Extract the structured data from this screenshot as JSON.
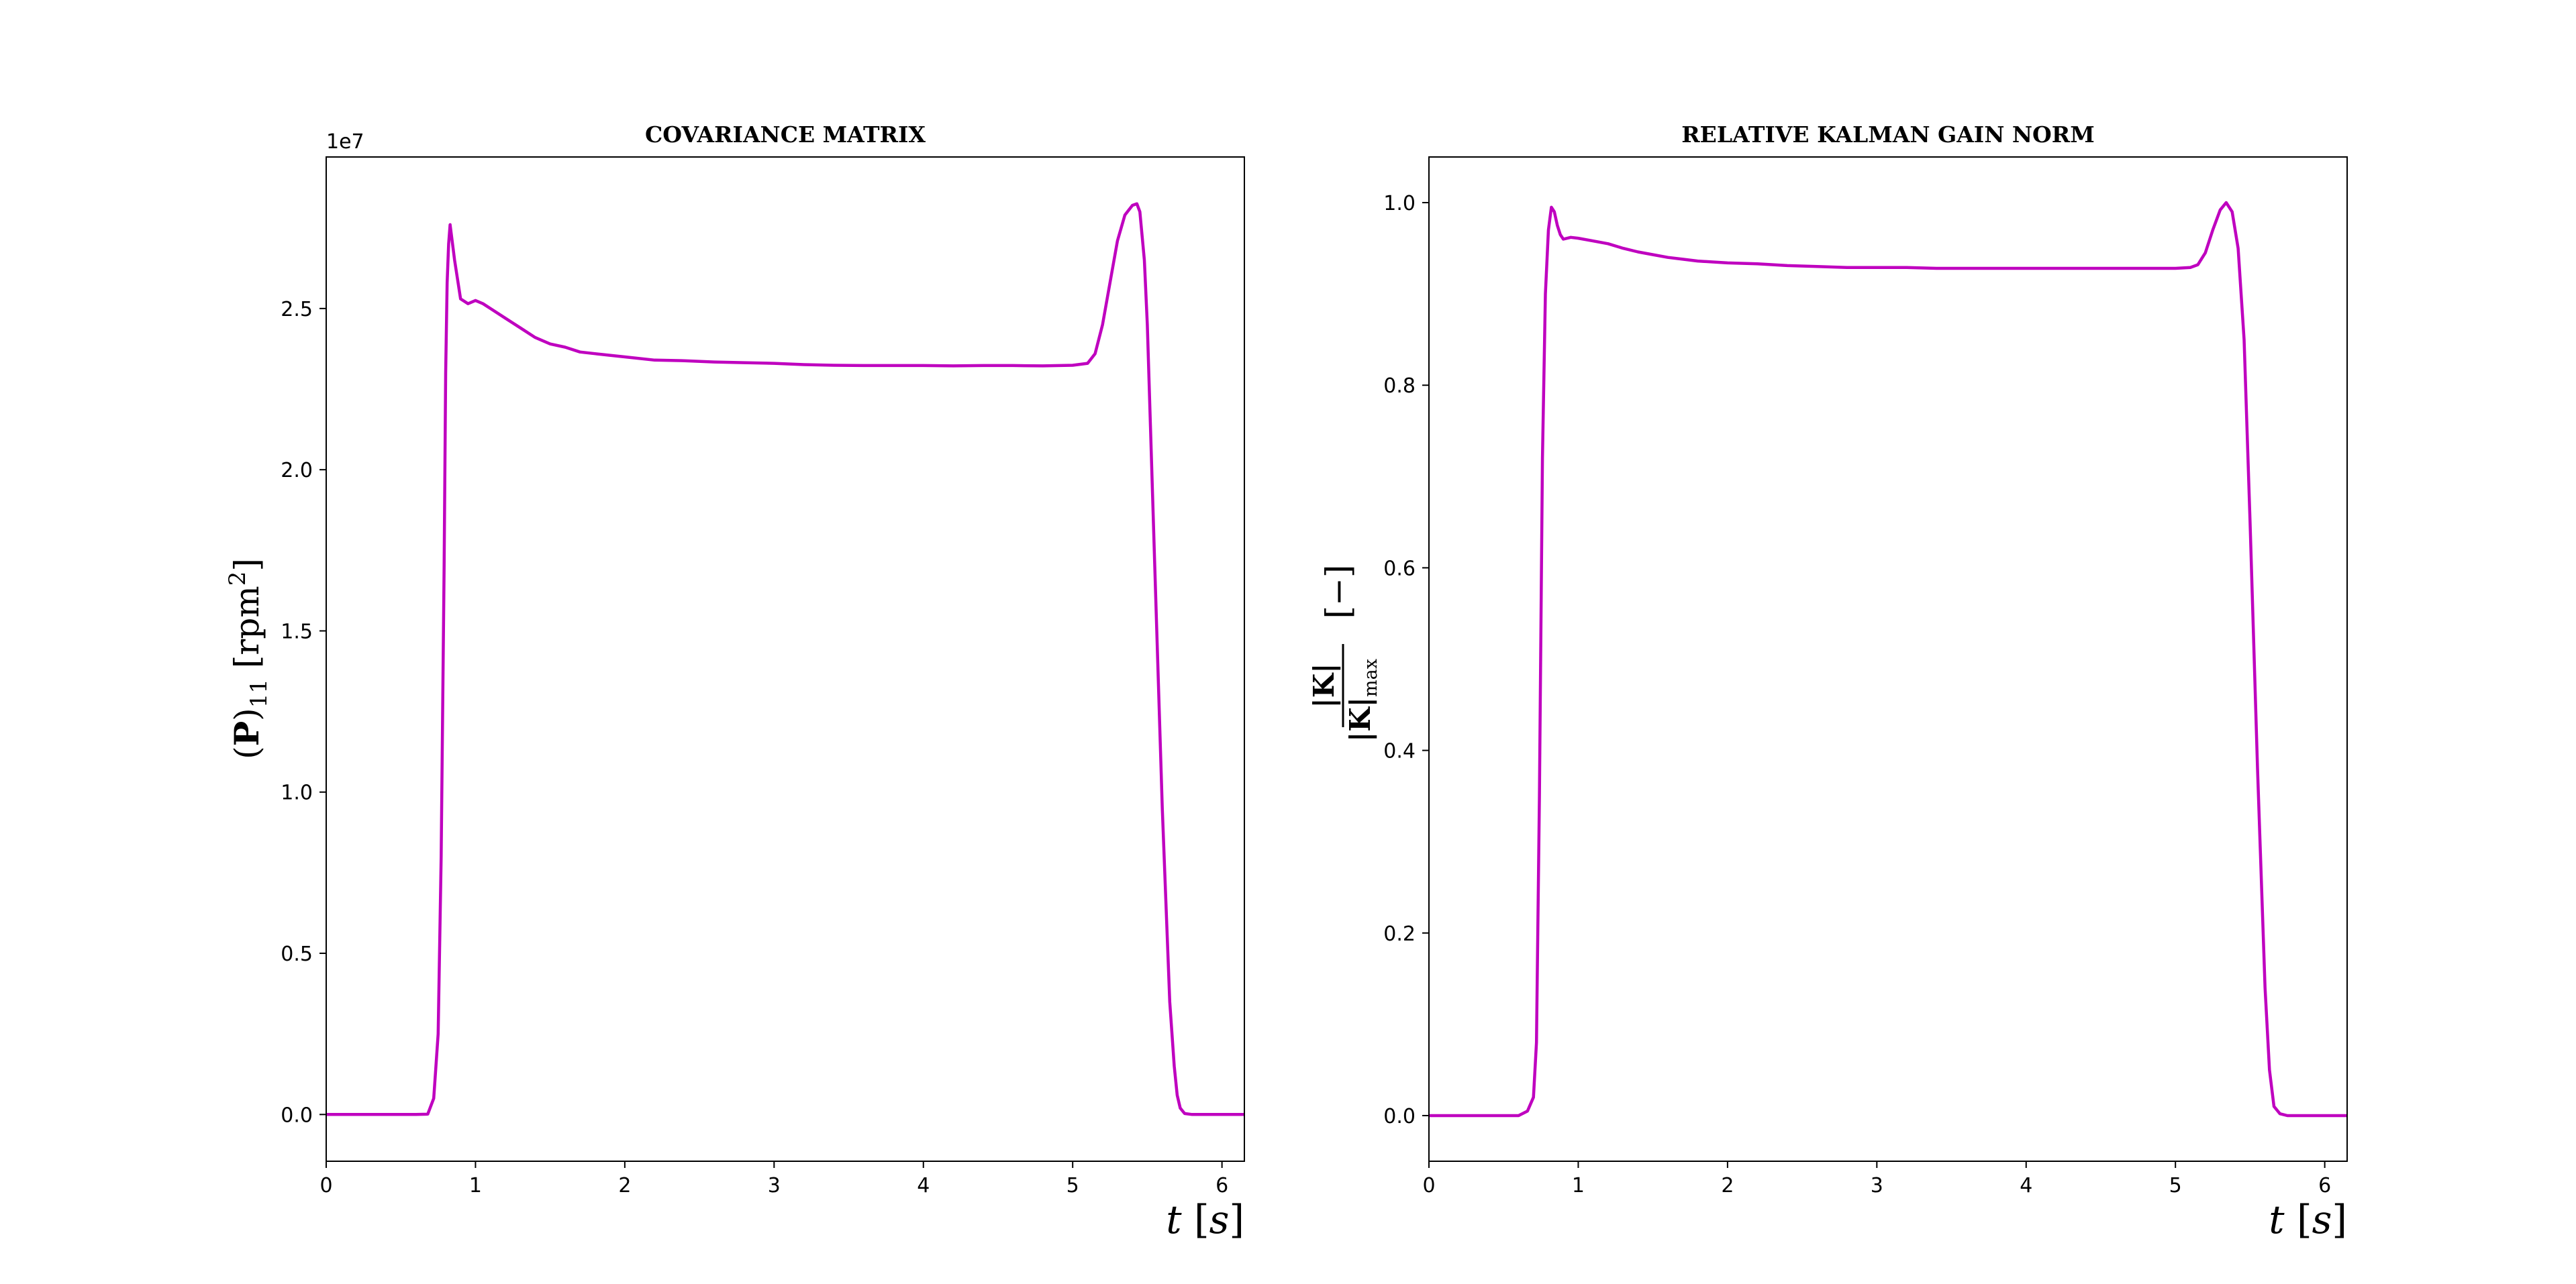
{
  "figure": {
    "background": "#ffffff"
  },
  "chart_data": [
    {
      "type": "line",
      "title": "COVARIANCE MATRIX",
      "xlabel_math": {
        "italic": "t",
        "rest": " [",
        "unit_italic": "s",
        "close": "]"
      },
      "ylabel_math": {
        "open": "(",
        "bold": "P",
        "close": ")",
        "sub": "11",
        "unit": " [rpm",
        "sup": "2",
        "unit_close": "]"
      },
      "offset_text": "1e7",
      "xlim": [
        0,
        6.15
      ],
      "ylim": [
        -1450000.0,
        29700000.0
      ],
      "xticks": [
        0,
        1,
        2,
        3,
        4,
        5,
        6
      ],
      "xtick_labels": [
        "0",
        "1",
        "2",
        "3",
        "4",
        "5",
        "6"
      ],
      "yticks": [
        0,
        5000000,
        10000000,
        15000000,
        20000000,
        25000000
      ],
      "ytick_labels": [
        "0.0",
        "0.5",
        "1.0",
        "1.5",
        "2.0",
        "2.5"
      ],
      "grid": false,
      "line_color": "#bf00bf",
      "series": [
        {
          "x": [
            0,
            0.6,
            0.68,
            0.72,
            0.75,
            0.77,
            0.79,
            0.8,
            0.81,
            0.82,
            0.83,
            0.86,
            0.9,
            0.95,
            1.0,
            1.05,
            1.1,
            1.2,
            1.3,
            1.4,
            1.5,
            1.6,
            1.7,
            1.8,
            1.9,
            2.0,
            2.2,
            2.4,
            2.6,
            2.8,
            3.0,
            3.2,
            3.4,
            3.6,
            3.8,
            4.0,
            4.2,
            4.4,
            4.6,
            4.8,
            5.0,
            5.1,
            5.15,
            5.2,
            5.25,
            5.3,
            5.35,
            5.4,
            5.43,
            5.45,
            5.48,
            5.5,
            5.55,
            5.6,
            5.65,
            5.68,
            5.7,
            5.72,
            5.75,
            5.8,
            5.9,
            6.15
          ],
          "y": [
            0,
            0,
            10000,
            500000,
            2500000,
            8000000,
            17000000,
            23000000,
            25800000,
            27000000,
            27600000,
            26500000,
            25300000,
            25150000,
            25250000,
            25150000,
            25000000,
            24700000,
            24400000,
            24100000,
            23900000,
            23800000,
            23650000,
            23600000,
            23550000,
            23500000,
            23400000,
            23380000,
            23340000,
            23320000,
            23300000,
            23260000,
            23240000,
            23230000,
            23230000,
            23230000,
            23220000,
            23230000,
            23230000,
            23220000,
            23240000,
            23300000,
            23600000,
            24500000,
            25800000,
            27100000,
            27900000,
            28200000,
            28250000,
            28000000,
            26500000,
            24500000,
            17000000,
            9500000,
            3500000,
            1500000,
            600000,
            200000,
            30000,
            0,
            0,
            0
          ]
        }
      ]
    },
    {
      "type": "line",
      "title": "RELATIVE KALMAN GAIN NORM",
      "xlabel_math": {
        "italic": "t",
        "rest": " [",
        "unit_italic": "s",
        "close": "]"
      },
      "ylabel_math": {
        "num": "|K|",
        "den": "|K|",
        "den_sub": "max",
        "unit": "[−]"
      },
      "xlim": [
        0,
        6.15
      ],
      "ylim": [
        -0.05,
        1.05
      ],
      "xticks": [
        0,
        1,
        2,
        3,
        4,
        5,
        6
      ],
      "xtick_labels": [
        "0",
        "1",
        "2",
        "3",
        "4",
        "5",
        "6"
      ],
      "yticks": [
        0,
        0.2,
        0.4,
        0.6,
        0.8,
        1.0
      ],
      "ytick_labels": [
        "0.0",
        "0.2",
        "0.4",
        "0.6",
        "0.8",
        "1.0"
      ],
      "grid": false,
      "line_color": "#bf00bf",
      "series": [
        {
          "x": [
            0,
            0.6,
            0.66,
            0.7,
            0.72,
            0.74,
            0.76,
            0.78,
            0.8,
            0.82,
            0.84,
            0.86,
            0.88,
            0.9,
            0.95,
            1.0,
            1.1,
            1.2,
            1.3,
            1.4,
            1.5,
            1.6,
            1.7,
            1.8,
            2.0,
            2.2,
            2.4,
            2.6,
            2.8,
            3.0,
            3.2,
            3.4,
            3.6,
            3.8,
            4.0,
            4.2,
            4.4,
            4.6,
            4.8,
            5.0,
            5.1,
            5.15,
            5.2,
            5.25,
            5.3,
            5.34,
            5.38,
            5.42,
            5.46,
            5.5,
            5.55,
            5.6,
            5.63,
            5.66,
            5.7,
            5.75,
            6.15
          ],
          "y": [
            0,
            0,
            0.005,
            0.02,
            0.08,
            0.35,
            0.72,
            0.9,
            0.97,
            0.995,
            0.99,
            0.975,
            0.965,
            0.96,
            0.962,
            0.961,
            0.958,
            0.955,
            0.95,
            0.946,
            0.943,
            0.94,
            0.938,
            0.936,
            0.934,
            0.933,
            0.931,
            0.93,
            0.929,
            0.929,
            0.929,
            0.928,
            0.928,
            0.928,
            0.928,
            0.928,
            0.928,
            0.928,
            0.928,
            0.928,
            0.929,
            0.932,
            0.945,
            0.97,
            0.992,
            1.0,
            0.99,
            0.95,
            0.85,
            0.65,
            0.38,
            0.14,
            0.05,
            0.01,
            0.002,
            0,
            0
          ]
        }
      ]
    }
  ]
}
